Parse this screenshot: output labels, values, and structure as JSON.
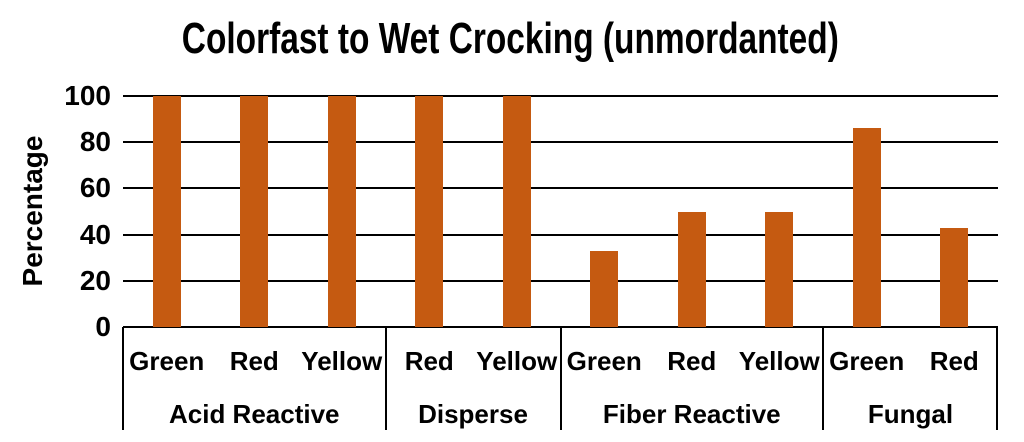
{
  "chart_data": {
    "type": "bar",
    "title": "Colorfast to Wet Crocking (unmordanted)",
    "ylabel": "Percentage",
    "xlabel": "",
    "ylim": [
      0,
      100
    ],
    "yticks": [
      0,
      20,
      40,
      60,
      80,
      100
    ],
    "grid": "horizontal",
    "legend": "none",
    "bar_color": "#C55A11",
    "grid_color": "#000000",
    "text_color": "#000000",
    "background_color": "#FFFFFF",
    "categories": [
      "Acid Reactive",
      "Disperse",
      "Fiber Reactive",
      "Fungal"
    ],
    "groups": [
      {
        "label": "Acid Reactive",
        "bars": [
          {
            "label": "Green",
            "value": 100
          },
          {
            "label": "Red",
            "value": 100
          },
          {
            "label": "Yellow",
            "value": 100
          }
        ]
      },
      {
        "label": "Disperse",
        "bars": [
          {
            "label": "Red",
            "value": 100
          },
          {
            "label": "Yellow",
            "value": 100
          }
        ]
      },
      {
        "label": "Fiber Reactive",
        "bars": [
          {
            "label": "Green",
            "value": 33
          },
          {
            "label": "Red",
            "value": 50
          },
          {
            "label": "Yellow",
            "value": 50
          }
        ]
      },
      {
        "label": "Fungal",
        "bars": [
          {
            "label": "Green",
            "value": 86
          },
          {
            "label": "Red",
            "value": 43
          }
        ]
      }
    ]
  }
}
